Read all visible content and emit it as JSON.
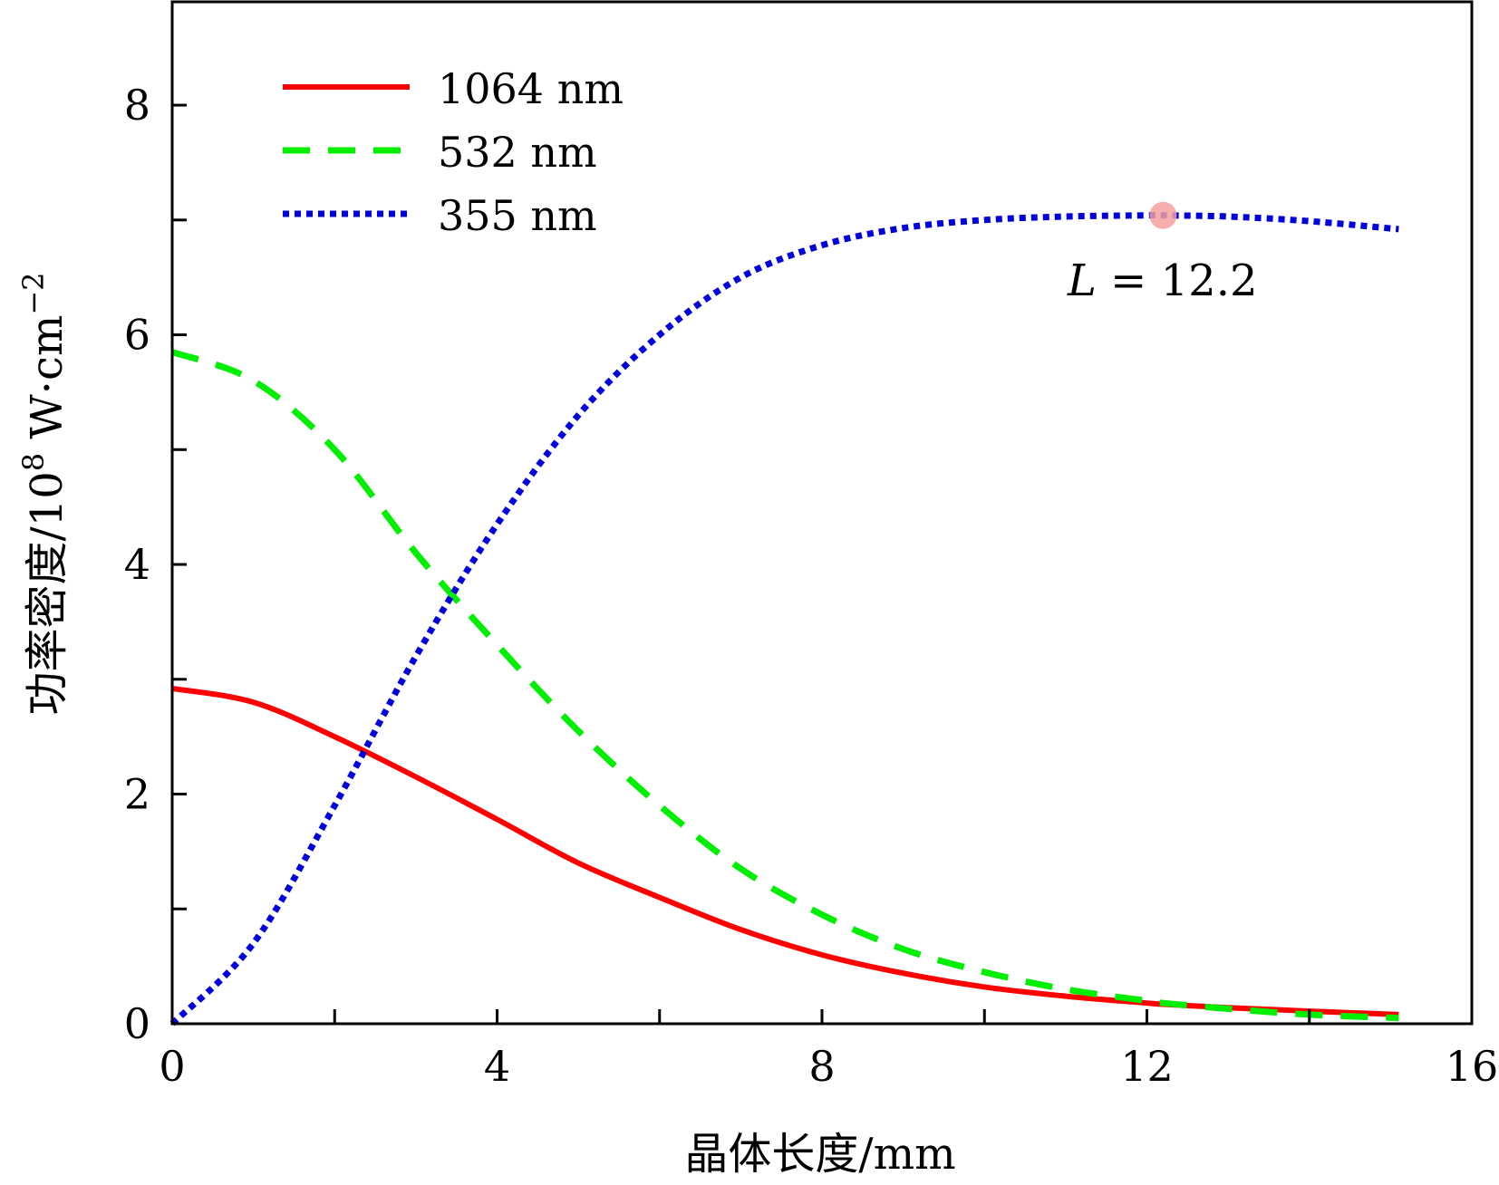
{
  "chart_data": {
    "type": "line",
    "title": "",
    "xlabel": "晶体长度/mm",
    "ylabel_main": "功率密度/10",
    "ylabel_exp1": "8",
    "ylabel_unit": " W·cm",
    "ylabel_exp2": "−2",
    "xlim": [
      0,
      16
    ],
    "ylim": [
      0,
      8.9
    ],
    "xticks": [
      0,
      2,
      4,
      6,
      8,
      10,
      12,
      14,
      16
    ],
    "xtick_labels": [
      "0",
      "4",
      "8",
      "12",
      "16"
    ],
    "xtick_label_values": [
      0,
      4,
      8,
      12,
      16
    ],
    "yticks": [
      0,
      1,
      2,
      3,
      4,
      5,
      6,
      7,
      8
    ],
    "ytick_labels": [
      "0",
      "2",
      "4",
      "6",
      "8"
    ],
    "ytick_label_values": [
      0,
      2,
      4,
      6,
      8
    ],
    "grid": false,
    "legend_position": "top-left",
    "x": [
      0,
      1,
      2,
      3,
      4,
      5,
      6,
      7,
      8,
      9,
      10,
      11,
      12,
      12.2,
      13,
      14,
      15.1
    ],
    "series": [
      {
        "name": "1064 nm",
        "color": "#ff0000",
        "style": "solid",
        "values": [
          2.92,
          2.8,
          2.5,
          2.15,
          1.78,
          1.4,
          1.1,
          0.82,
          0.6,
          0.44,
          0.32,
          0.24,
          0.18,
          0.17,
          0.14,
          0.11,
          0.08
        ]
      },
      {
        "name": "532 nm",
        "color": "#00ee00",
        "style": "dashed",
        "values": [
          5.85,
          5.6,
          5.0,
          4.1,
          3.3,
          2.55,
          1.9,
          1.35,
          0.95,
          0.65,
          0.45,
          0.3,
          0.2,
          0.18,
          0.13,
          0.08,
          0.05
        ]
      },
      {
        "name": "355 nm",
        "color": "#0000dd",
        "style": "dotted",
        "values": [
          0.0,
          0.7,
          1.9,
          3.2,
          4.35,
          5.3,
          6.0,
          6.5,
          6.78,
          6.93,
          7.0,
          7.03,
          7.04,
          7.04,
          7.03,
          6.99,
          6.92
        ]
      }
    ],
    "annotations": [
      {
        "label_prefix": "L",
        "label_suffix": " = 12.2",
        "x": 12.2,
        "y": 7.04,
        "marker_color": "#f4a0a0"
      }
    ]
  }
}
